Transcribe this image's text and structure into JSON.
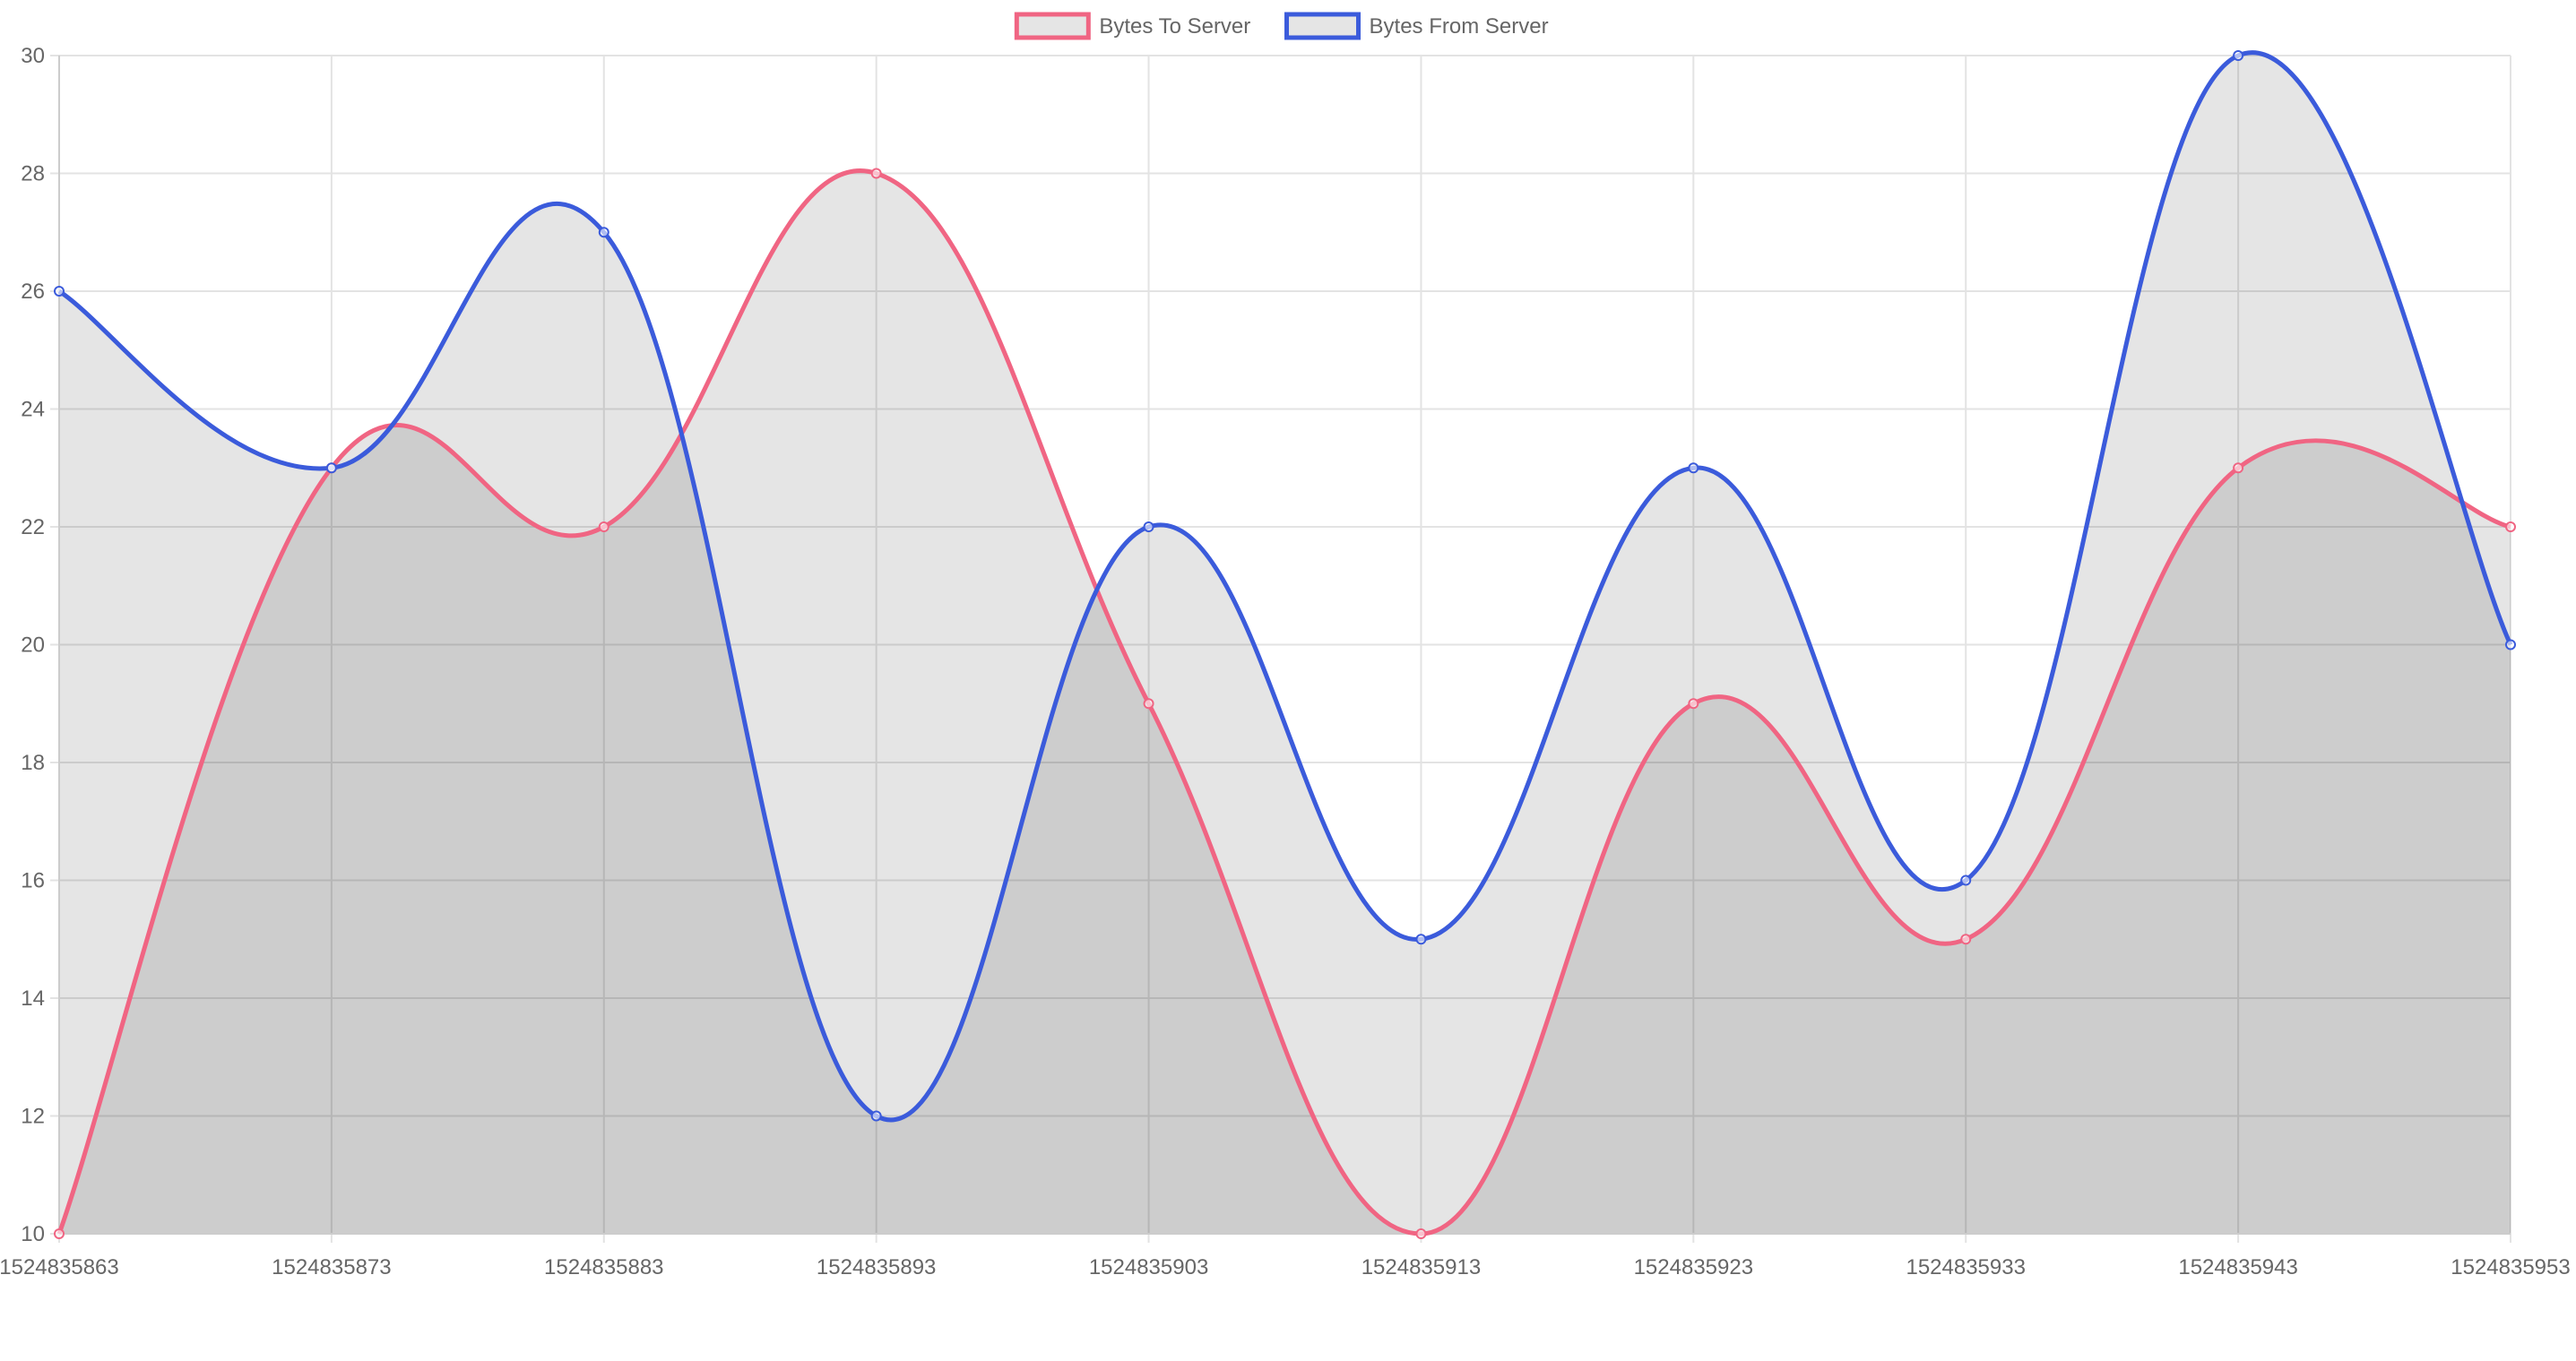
{
  "chart_data": {
    "type": "area",
    "title": "",
    "xlabel": "",
    "ylabel": "",
    "x": [
      1524835863,
      1524835873,
      1524835883,
      1524835893,
      1524835903,
      1524835913,
      1524835923,
      1524835933,
      1524835943,
      1524835953
    ],
    "x_tick_labels": [
      "1524835863",
      "1524835873",
      "1524835883",
      "1524835893",
      "1524835903",
      "1524835913",
      "1524835923",
      "1524835933",
      "1524835943",
      "1524835953"
    ],
    "ylim": [
      10,
      30
    ],
    "y_ticks": [
      10,
      12,
      14,
      16,
      18,
      20,
      22,
      24,
      26,
      28,
      30
    ],
    "grid": true,
    "legend_position": "top",
    "series": [
      {
        "name": "Bytes To Server",
        "values": [
          10,
          23,
          22,
          28,
          19,
          10,
          19,
          15,
          23,
          22
        ],
        "color": "#f06583",
        "fill": "rgba(0,0,0,0.1)"
      },
      {
        "name": "Bytes From Server",
        "values": [
          26,
          23,
          27,
          12,
          22,
          15,
          23,
          16,
          30,
          20
        ],
        "color": "#3b5bdb",
        "fill": "rgba(0,0,0,0.1)"
      }
    ]
  }
}
